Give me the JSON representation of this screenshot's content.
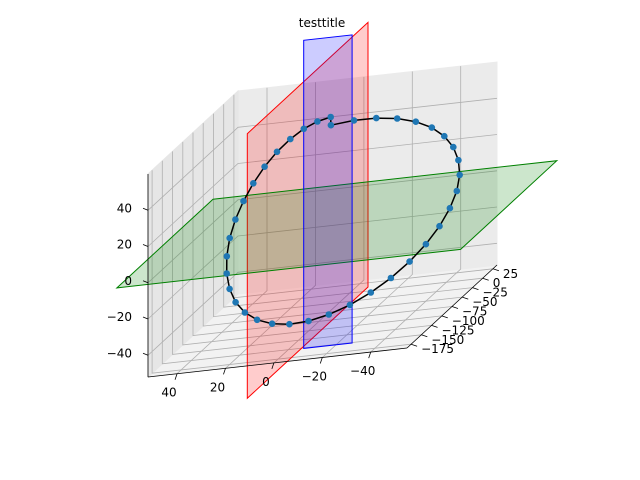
{
  "chart_data": {
    "type": "scatter",
    "projection": "3d",
    "title": "testtitle",
    "xlabel": "",
    "ylabel": "",
    "zlabel": "",
    "xticks": [
      40,
      20,
      0,
      -20,
      -40
    ],
    "yticks": [
      25,
      0,
      -25,
      -50,
      -75,
      -100,
      -125,
      -150,
      -175
    ],
    "zticks": [
      40,
      20,
      0,
      -20,
      -40
    ],
    "grid": true,
    "series": [
      {
        "kind": "line",
        "color": "#000000",
        "x": [
          -1.8,
          -9.2,
          -16.4,
          -23.2,
          -29.4,
          -34.9,
          -39.4,
          -42.9,
          -45.3,
          -46.6,
          -46.6,
          -45.3,
          -42.9,
          -39.4,
          -34.9,
          -29.4,
          -23.2,
          -16.4,
          -9.2,
          -1.8,
          5.6,
          12.8,
          19.6,
          25.8,
          31.3,
          35.8,
          39.3,
          41.7,
          43.0,
          43.0,
          41.7,
          39.3,
          35.8,
          31.3,
          25.8,
          19.6,
          12.8,
          5.6
        ],
        "y": [
          -56.3,
          -43.6,
          -31.6,
          -20.9,
          -12.0,
          -5.4,
          -1.5,
          -0.3,
          -2.0,
          -6.4,
          -13.5,
          -22.8,
          -34.0,
          -46.5,
          -59.7,
          -72.9,
          -85.3,
          -96.3,
          -105.1,
          -111.1,
          -114.0,
          -113.6,
          -109.9,
          -103.1,
          -93.4,
          -81.4,
          -67.8,
          -53.2,
          -38.6,
          -24.7,
          -12.5,
          -2.7,
          4.2,
          7.8,
          7.7,
          4.2,
          -2.8,
          -12.9
        ],
        "z": [
          52.1,
          51.0,
          48.7,
          45.2,
          40.7,
          35.2,
          29.0,
          22.2,
          15.0,
          7.6,
          0.2,
          -7.2,
          -14.4,
          -21.2,
          -27.4,
          -32.9,
          -37.4,
          -40.9,
          -43.3,
          -44.6,
          -44.6,
          -43.3,
          -40.9,
          -37.4,
          -32.9,
          -27.4,
          -21.2,
          -14.4,
          -7.2,
          0.2,
          7.6,
          15.0,
          22.2,
          29.0,
          35.2,
          40.7,
          45.2,
          48.7
        ]
      },
      {
        "kind": "markers",
        "color": "#1f77b4",
        "x": [
          -1.8,
          -9.2,
          -16.4,
          -23.2,
          -29.4,
          -34.9,
          -39.4,
          -42.9,
          -45.3,
          -46.6,
          -46.6,
          -45.3,
          -42.9,
          -39.4,
          -34.9,
          -29.4,
          -23.2,
          -16.4,
          -9.2,
          -1.8,
          5.6,
          12.8,
          19.6,
          25.8,
          31.3,
          35.8,
          39.3,
          41.7,
          43.0,
          43.0,
          41.7,
          39.3,
          35.8,
          31.3,
          25.8,
          19.6,
          12.8,
          5.6
        ],
        "y": [
          -56.3,
          -43.6,
          -31.6,
          -20.9,
          -12.0,
          -5.4,
          -1.5,
          -0.3,
          -2.0,
          -6.4,
          -13.5,
          -22.8,
          -34.0,
          -46.5,
          -59.7,
          -72.9,
          -85.3,
          -96.3,
          -105.1,
          -111.1,
          -114.0,
          -113.6,
          -109.9,
          -103.1,
          -93.4,
          -81.4,
          -67.8,
          -53.2,
          -38.6,
          -24.7,
          -12.5,
          -2.7,
          4.2,
          7.8,
          7.7,
          4.2,
          -2.8,
          -12.9
        ],
        "z": [
          52.1,
          51.0,
          48.7,
          45.2,
          40.7,
          35.2,
          29.0,
          22.2,
          15.0,
          7.6,
          0.2,
          -7.2,
          -14.4,
          -21.2,
          -27.4,
          -32.9,
          -37.4,
          -40.9,
          -43.3,
          -44.6,
          -44.6,
          -43.3,
          -40.9,
          -37.4,
          -32.9,
          -27.4,
          -21.2,
          -14.4,
          -7.2,
          0.2,
          7.6,
          15.0,
          22.2,
          29.0,
          35.2,
          40.7,
          45.2,
          48.7
        ]
      }
    ],
    "planes": [
      {
        "name_color": "red",
        "fill": "#ff0000",
        "edge": "#ff0000",
        "alpha": 0.2,
        "axis": "x",
        "value": 0
      },
      {
        "name_color": "green",
        "fill": "#008000",
        "edge": "#008000",
        "alpha": 0.2,
        "axis": "z",
        "value": 0
      },
      {
        "name_color": "blue",
        "fill": "#0000ff",
        "edge": "#0000ff",
        "alpha": 0.2,
        "axis": "y",
        "value": -53
      }
    ]
  }
}
